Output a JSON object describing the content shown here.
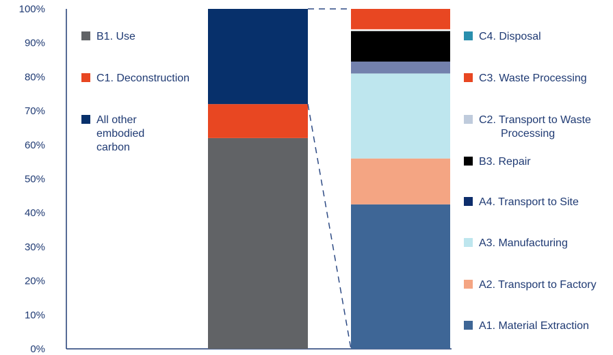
{
  "chart_data": {
    "type": "bar",
    "stacked": true,
    "y_ticks": [
      "0%",
      "10%",
      "20%",
      "30%",
      "40%",
      "50%",
      "60%",
      "70%",
      "80%",
      "90%",
      "100%"
    ],
    "ylim": [
      0,
      100
    ],
    "grid": false,
    "bars": [
      {
        "segments": [
          {
            "name": "B1. Use",
            "value": 62,
            "color": "#616366"
          },
          {
            "name": "C1. Deconstruction",
            "value": 10,
            "color": "#e84722"
          },
          {
            "name": "All other embodied carbon",
            "value": 28,
            "color": "#07306b"
          }
        ]
      },
      {
        "segments": [
          {
            "name": "A1. Material Extraction",
            "value": 42.5,
            "color": "#3e6696"
          },
          {
            "name": "A2. Transport to Factory",
            "value": 13.5,
            "color": "#f4a583"
          },
          {
            "name": "A3. Manufacturing",
            "value": 25,
            "color": "#bee6ee"
          },
          {
            "name": "A4. Transport to Site",
            "value": 0,
            "color": "#0d2d6b"
          },
          {
            "name": "B3. Repair",
            "value": 0,
            "color": "#000000"
          },
          {
            "name": "C2. Transport to Waste Processing",
            "value": 3.5,
            "color": "#7381ad"
          },
          {
            "name": "C3. Waste Processing",
            "value": 9,
            "color": "#000000"
          },
          {
            "name": "C4. Disposal",
            "value": 0,
            "color": "#2a8fae"
          },
          {
            "name": "C3. Waste Processing",
            "value": 0.5,
            "color": "#ffffff"
          },
          {
            "name": "C3. Waste Processing",
            "value": 6,
            "color": "#e84722"
          }
        ]
      }
    ],
    "legend_left": [
      {
        "lines": [
          "B1. Use"
        ],
        "color": "#616366"
      },
      {
        "lines": [
          "C1. Deconstruction"
        ],
        "color": "#e84722"
      },
      {
        "lines": [
          "All other",
          "embodied",
          "carbon"
        ],
        "color": "#07306b"
      }
    ],
    "legend_right": [
      {
        "lines": [
          "C4. Disposal"
        ],
        "color": "#2a8fae"
      },
      {
        "lines": [
          "C3. Waste Processing"
        ],
        "color": "#e84722"
      },
      {
        "lines": [
          "C2. Transport to Waste",
          "Processing"
        ],
        "color": "#bfcbdc"
      },
      {
        "lines": [
          "B3. Repair"
        ],
        "color": "#000000"
      },
      {
        "lines": [
          "A4. Transport to Site"
        ],
        "color": "#0d2d6b"
      },
      {
        "lines": [
          "A3. Manufacturing"
        ],
        "color": "#bee6ee"
      },
      {
        "lines": [
          "A2. Transport to Factory"
        ],
        "color": "#f4a583"
      },
      {
        "lines": [
          "A1. Material Extraction"
        ],
        "color": "#3e6696"
      }
    ],
    "colors": {
      "axis": "#1f3a73",
      "connector": "#2d4a84"
    }
  }
}
